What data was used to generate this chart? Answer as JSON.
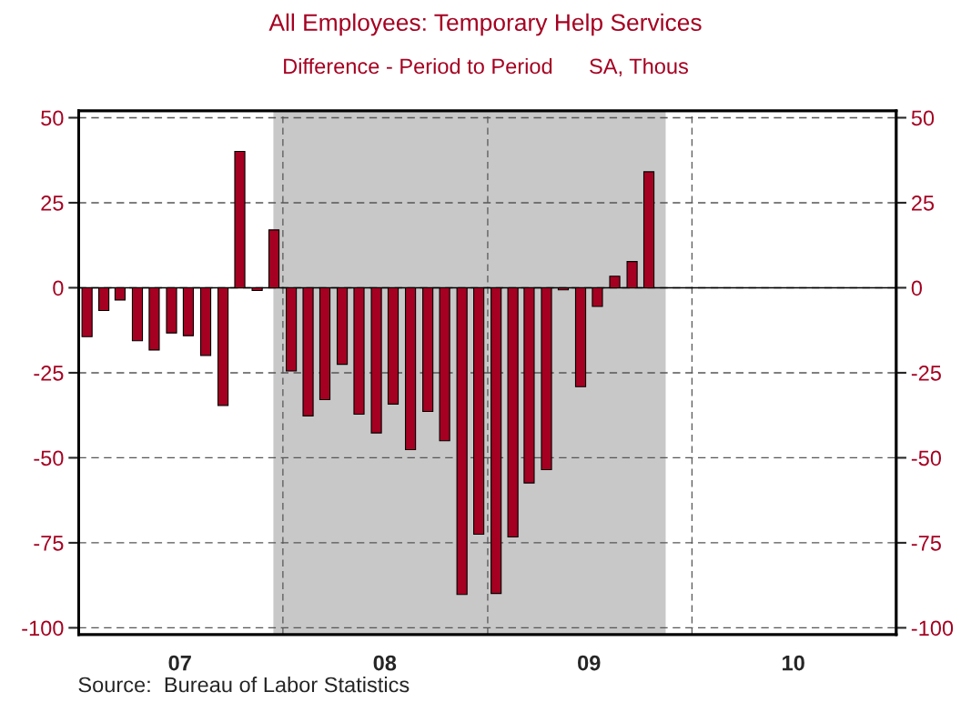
{
  "chart_data": {
    "type": "bar",
    "title": "All Employees: Temporary Help Services",
    "subtitle": "Difference - Period to Period      SA, Thous",
    "x": [
      "2007-01-16",
      "2007-02-15",
      "2007-03-16",
      "2007-04-16",
      "2007-05-16",
      "2007-06-16",
      "2007-07-16",
      "2007-08-16",
      "2007-09-16",
      "2007-10-16",
      "2007-11-16",
      "2007-12-16",
      "2008-01-16",
      "2008-02-15",
      "2008-03-16",
      "2008-04-16",
      "2008-05-16",
      "2008-06-16",
      "2008-07-16",
      "2008-08-16",
      "2008-09-16",
      "2008-10-16",
      "2008-11-16",
      "2008-12-16",
      "2009-01-16",
      "2009-02-15",
      "2009-03-16",
      "2009-04-16",
      "2009-05-16",
      "2009-06-16",
      "2009-07-16",
      "2009-08-16",
      "2009-09-16",
      "2009-10-16"
    ],
    "series": [
      {
        "color": "#a50021",
        "values": [
          -14.4,
          -6.7,
          -3.6,
          -15.6,
          -18.3,
          -13.3,
          -14.1,
          -19.9,
          -34.6,
          40.1,
          -0.8,
          17.0,
          -24.5,
          -37.7,
          -32.9,
          -22.5,
          -37.2,
          -42.7,
          -34.2,
          -47.6,
          -36.4,
          -45.0,
          -90.2,
          -72.5,
          -89.9,
          -73.3,
          -57.4,
          -53.5,
          -0.6,
          -29.1,
          -5.5,
          3.4,
          7.7,
          34.1
        ]
      }
    ],
    "xlim": [
      "2007-01-01",
      "2011-01-01"
    ],
    "xticks": [
      {
        "value": "2007-01-01",
        "label": null
      },
      {
        "value": "2007-07-01",
        "label": "07"
      },
      {
        "value": "2008-01-01",
        "label": null
      },
      {
        "value": "2008-07-01",
        "label": "08"
      },
      {
        "value": "2009-01-01",
        "label": null
      },
      {
        "value": "2009-07-01",
        "label": "09"
      },
      {
        "value": "2010-01-01",
        "label": null
      },
      {
        "value": "2010-07-01",
        "label": "10"
      },
      {
        "value": "2011-01-01",
        "label": null
      }
    ],
    "ylim": [
      -102,
      52
    ],
    "yticks": [
      -100,
      -75,
      -50,
      -25,
      0,
      25,
      50
    ],
    "y2lim": [
      -102,
      52
    ],
    "y2ticks": [
      -100,
      -75,
      -50,
      -25,
      0,
      25,
      50
    ],
    "grid": true,
    "ref_lines": [
      {
        "axis": "y",
        "value": 0,
        "color": "#000000",
        "line_style": "solid"
      }
    ],
    "bands": [
      {
        "axis": "x",
        "from": "2007-12-15",
        "to": "2009-11-15",
        "color": "#c8c8c8"
      }
    ],
    "annotations": [
      "Source:  Bureau of Labor Statistics"
    ]
  }
}
